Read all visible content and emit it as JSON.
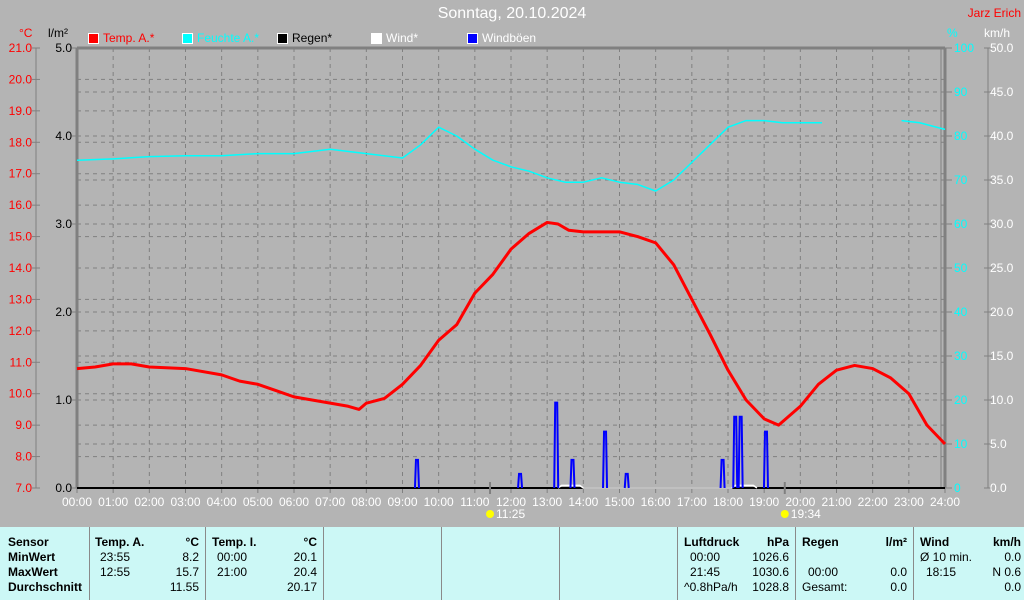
{
  "header": {
    "title": "Sonntag, 20.10.2024",
    "author": "Jarz Erich"
  },
  "legend": [
    {
      "label": "Temp. A.*",
      "color": "#ff0000"
    },
    {
      "label": "Feuchte A.*",
      "color": "#00ffff"
    },
    {
      "label": "Regen*",
      "color": "#000000"
    },
    {
      "label": "Wind*",
      "color": "#ffffff"
    },
    {
      "label": "Windböen",
      "color": "#0000ff"
    }
  ],
  "units": {
    "temp": "°C",
    "rain": "l/m²",
    "humidity": "%",
    "wind": "km/h"
  },
  "chart_data": {
    "type": "line",
    "x_ticks": [
      "00:00",
      "01:00",
      "02:00",
      "03:00",
      "04:00",
      "05:00",
      "06:00",
      "07:00",
      "08:00",
      "09:00",
      "10:00",
      "11:00",
      "12:00",
      "13:00",
      "14:00",
      "15:00",
      "16:00",
      "17:00",
      "18:00",
      "19:00",
      "20:00",
      "21:00",
      "22:00",
      "23:00",
      "24:00"
    ],
    "axes": {
      "temp": {
        "range": [
          7,
          21
        ],
        "ticks": [
          "7.0",
          "8.0",
          "9.0",
          "10.0",
          "11.0",
          "12.0",
          "13.0",
          "14.0",
          "15.0",
          "16.0",
          "17.0",
          "18.0",
          "19.0",
          "20.0",
          "21.0"
        ],
        "color": "#ff0000"
      },
      "rain": {
        "range": [
          0,
          5
        ],
        "ticks": [
          "0.0",
          "1.0",
          "2.0",
          "3.0",
          "4.0",
          "5.0"
        ],
        "color": "#000000"
      },
      "humidity": {
        "range": [
          0,
          100
        ],
        "ticks": [
          "0",
          "10",
          "20",
          "30",
          "40",
          "50",
          "60",
          "70",
          "80",
          "90",
          "100"
        ],
        "color": "#00ffff"
      },
      "wind": {
        "range": [
          0,
          50
        ],
        "ticks": [
          "0.0",
          "5.0",
          "10.0",
          "15.0",
          "20.0",
          "25.0",
          "30.0",
          "35.0",
          "40.0",
          "45.0",
          "50.0"
        ],
        "color": "#ffffff"
      }
    },
    "grid": true,
    "legend_position": "top",
    "series": [
      {
        "name": "Temp. A.*",
        "axis": "temp",
        "color": "#ff0000",
        "points": [
          [
            0,
            10.8
          ],
          [
            0.5,
            10.85
          ],
          [
            1,
            10.95
          ],
          [
            1.5,
            10.95
          ],
          [
            2,
            10.85
          ],
          [
            3,
            10.8
          ],
          [
            4,
            10.6
          ],
          [
            4.5,
            10.4
          ],
          [
            5,
            10.3
          ],
          [
            5.5,
            10.1
          ],
          [
            6,
            9.9
          ],
          [
            6.5,
            9.8
          ],
          [
            7,
            9.7
          ],
          [
            7.5,
            9.6
          ],
          [
            7.8,
            9.5
          ],
          [
            8,
            9.7
          ],
          [
            8.5,
            9.85
          ],
          [
            9,
            10.3
          ],
          [
            9.5,
            10.9
          ],
          [
            10,
            11.7
          ],
          [
            10.5,
            12.2
          ],
          [
            11,
            13.2
          ],
          [
            11.5,
            13.8
          ],
          [
            12,
            14.6
          ],
          [
            12.5,
            15.1
          ],
          [
            13,
            15.45
          ],
          [
            13.3,
            15.4
          ],
          [
            13.6,
            15.2
          ],
          [
            14,
            15.15
          ],
          [
            14.5,
            15.15
          ],
          [
            15,
            15.15
          ],
          [
            15.5,
            15.0
          ],
          [
            16,
            14.8
          ],
          [
            16.5,
            14.1
          ],
          [
            17,
            13.0
          ],
          [
            17.5,
            11.9
          ],
          [
            18,
            10.75
          ],
          [
            18.5,
            9.8
          ],
          [
            19,
            9.2
          ],
          [
            19.4,
            9.0
          ],
          [
            20,
            9.6
          ],
          [
            20.5,
            10.3
          ],
          [
            21,
            10.75
          ],
          [
            21.5,
            10.9
          ],
          [
            22,
            10.8
          ],
          [
            22.5,
            10.5
          ],
          [
            23,
            10.0
          ],
          [
            23.5,
            9.0
          ],
          [
            24,
            8.4
          ]
        ]
      },
      {
        "name": "Feuchte A.*",
        "axis": "humidity",
        "color": "#00ffff",
        "points": [
          [
            0,
            74.5
          ],
          [
            1,
            74.8
          ],
          [
            2,
            75.3
          ],
          [
            3,
            75.5
          ],
          [
            4,
            75.5
          ],
          [
            5,
            76
          ],
          [
            6,
            76
          ],
          [
            7,
            77
          ],
          [
            8,
            76
          ],
          [
            9,
            75
          ],
          [
            9.5,
            78
          ],
          [
            10,
            82
          ],
          [
            10.5,
            80
          ],
          [
            11,
            77
          ],
          [
            11.5,
            74.5
          ],
          [
            12,
            73
          ],
          [
            12.5,
            72
          ],
          [
            13,
            70.5
          ],
          [
            13.5,
            69.5
          ],
          [
            14,
            69.5
          ],
          [
            14.5,
            70.5
          ],
          [
            15,
            69.5
          ],
          [
            15.5,
            69
          ],
          [
            16,
            67.5
          ],
          [
            16.5,
            70
          ],
          [
            17,
            74
          ],
          [
            17.5,
            78
          ],
          [
            18,
            82
          ],
          [
            18.5,
            83.5
          ],
          [
            19,
            83.5
          ],
          [
            19.5,
            83
          ],
          [
            20,
            83
          ],
          [
            20.6,
            83
          ]
        ],
        "points_2": [
          [
            22.8,
            83.5
          ],
          [
            23.3,
            83
          ],
          [
            24,
            81.5
          ]
        ]
      },
      {
        "name": "Regen*",
        "axis": "rain",
        "color": "#000000",
        "points": [
          [
            0,
            0
          ],
          [
            24,
            0
          ]
        ]
      },
      {
        "name": "Wind*",
        "axis": "wind",
        "color": "#ffffff",
        "points": [
          [
            13.3,
            0
          ],
          [
            13.4,
            0.3
          ],
          [
            13.9,
            0.3
          ],
          [
            14,
            0
          ],
          [
            18.1,
            0
          ],
          [
            18.2,
            0.3
          ],
          [
            18.7,
            0.3
          ],
          [
            18.8,
            0
          ]
        ]
      },
      {
        "name": "Windböen",
        "axis": "wind",
        "color": "#0000ff",
        "spikes": [
          [
            9.4,
            3.2
          ],
          [
            12.25,
            1.6
          ],
          [
            13.25,
            9.7
          ],
          [
            13.7,
            3.2
          ],
          [
            14.6,
            6.4
          ],
          [
            15.2,
            1.6
          ],
          [
            17.85,
            3.2
          ],
          [
            18.2,
            8.1
          ],
          [
            18.35,
            8.1
          ],
          [
            19.05,
            6.4
          ]
        ]
      }
    ],
    "annotations": [
      {
        "time": "11:25",
        "at": 11.42,
        "icon": "sunrise-icon"
      },
      {
        "time": "19:34",
        "at": 19.57,
        "icon": "sunset-icon"
      }
    ]
  },
  "stats": {
    "sensor": {
      "header": "Sensor",
      "rows": [
        "MinWert",
        "MaxWert",
        "Durchschnitt"
      ]
    },
    "temp_a": {
      "header": "Temp. A.",
      "unit": "°C",
      "min_time": "23:55",
      "min": "8.2",
      "max_time": "12:55",
      "max": "15.7",
      "avg": "11.55"
    },
    "temp_i": {
      "header": "Temp. I.",
      "unit": "°C",
      "min_time": "00:00",
      "min": "20.1",
      "max_time": "21:00",
      "max": "20.4",
      "avg": "20.17"
    },
    "pressure": {
      "header": "Luftdruck",
      "unit": "hPa",
      "min_time": "00:00",
      "min": "1026.6",
      "max_time": "21:45",
      "max": "1030.6",
      "trend": "^0.8hPa/h",
      "avg": "1028.8"
    },
    "rain": {
      "header": "Regen",
      "unit": "l/m²",
      "max_time": "00:00",
      "max": "0.0",
      "total_label": "Gesamt:",
      "total": "0.0"
    },
    "wind": {
      "header": "Wind",
      "unit": "km/h",
      "avg_label": "Ø 10 min.",
      "avg": "0.0",
      "max_time": "18:15",
      "max": "N 0.6",
      "last": "0.0"
    }
  }
}
